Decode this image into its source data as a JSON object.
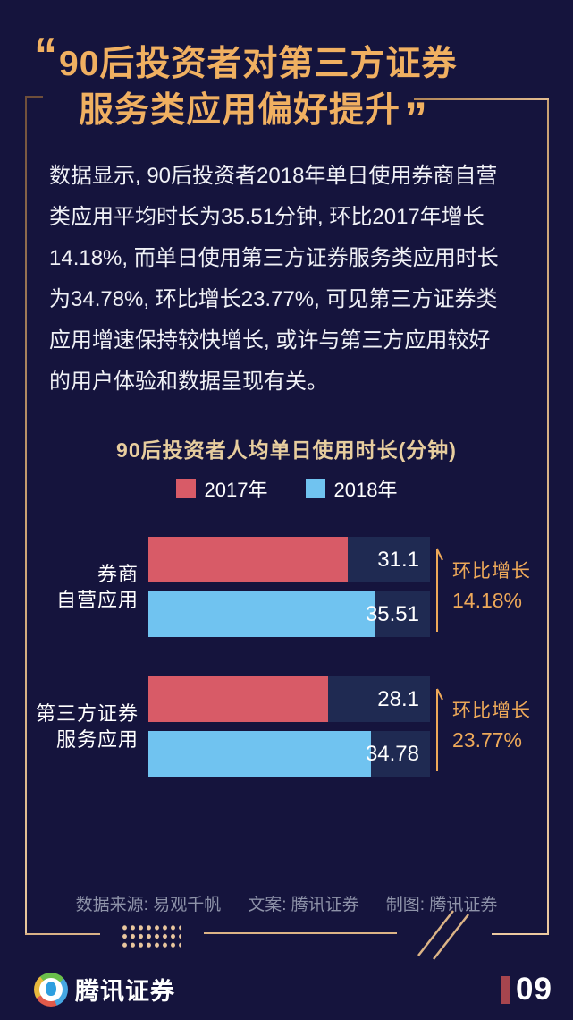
{
  "colors": {
    "background": "#15143d",
    "track": "#1f2a52",
    "accent_gold": "#f0b061",
    "annotation_gold": "#eea959",
    "page_red": "#a6454e"
  },
  "title": {
    "open_quote": "“",
    "line1": "90后投资者对第三方证券",
    "line2": "服务类应用偏好提升",
    "close_quote": "”"
  },
  "paragraph": {
    "lines": [
      "数据显示, 90后投资者2018年单日使用券商自营",
      "类应用平均时长为35.51分钟, 环比2017年增长",
      "14.18%, 而单日使用第三方证券服务类应用时长",
      "为34.78%, 环比增长23.77%, 可见第三方证券类",
      "应用增速保持较快增长, 或许与第三方应用较好",
      "的用户体验和数据呈现有关。"
    ]
  },
  "chart_data": {
    "type": "bar",
    "orientation": "horizontal",
    "title": "90后投资者人均单日使用时长(分钟)",
    "xlabel": "",
    "ylabel": "",
    "xmax": 44,
    "grid": false,
    "legend_position": "top-center",
    "legend": [
      {
        "label": "2017年",
        "color": "#d85b67"
      },
      {
        "label": "2018年",
        "color": "#70c3f0"
      }
    ],
    "categories": [
      "券商自营应用",
      "第三方证券服务应用"
    ],
    "series": [
      {
        "name": "2017年",
        "values": [
          31.1,
          28.1
        ]
      },
      {
        "name": "2018年",
        "values": [
          35.51,
          34.78
        ]
      }
    ],
    "groups": [
      {
        "category_lines": [
          "券商",
          "自营应用"
        ],
        "bars": [
          {
            "series": "2017年",
            "value": 31.1,
            "label": "31.1"
          },
          {
            "series": "2018年",
            "value": 35.51,
            "label": "35.51"
          }
        ],
        "annotation": {
          "line1": "环比增长",
          "line2": "14.18%"
        }
      },
      {
        "category_lines": [
          "第三方证券",
          "服务应用"
        ],
        "bars": [
          {
            "series": "2017年",
            "value": 28.1,
            "label": "28.1"
          },
          {
            "series": "2018年",
            "value": 34.78,
            "label": "34.78"
          }
        ],
        "annotation": {
          "line1": "环比增长",
          "line2": "23.77%"
        }
      }
    ]
  },
  "footer": {
    "source": "数据来源: 易观千帆",
    "copywriter": "文案: 腾讯证券",
    "design": "制图: 腾讯证券"
  },
  "bottombar": {
    "brand": "腾讯证券",
    "page_number": "09"
  }
}
